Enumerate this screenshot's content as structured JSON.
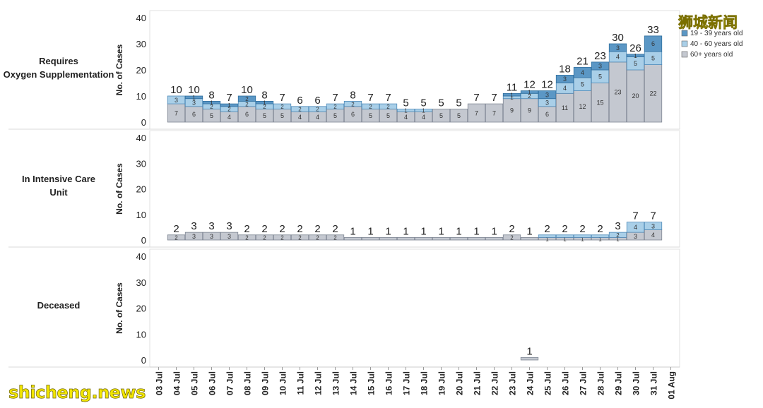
{
  "watermarks": {
    "top": "狮城新闻",
    "bottom": "shicheng.news"
  },
  "legend": {
    "items": [
      {
        "label": "19 - 39 years old",
        "color": "#5b97c5"
      },
      {
        "label": "40 - 60 years old",
        "color": "#a9cfe8"
      },
      {
        "label": "60+ years old",
        "color": "#c4c8d0"
      }
    ]
  },
  "chart_data": {
    "type": "bar",
    "stacked": true,
    "categories": [
      "03 Jul",
      "04 Jul",
      "05 Jul",
      "06 Jul",
      "07 Jul",
      "08 Jul",
      "09 Jul",
      "10 Jul",
      "11 Jul",
      "12 Jul",
      "13 Jul",
      "14 Jul",
      "15 Jul",
      "16 Jul",
      "17 Jul",
      "18 Jul",
      "19 Jul",
      "20 Jul",
      "21 Jul",
      "22 Jul",
      "23 Jul",
      "24 Jul",
      "25 Jul",
      "26 Jul",
      "27 Jul",
      "28 Jul",
      "29 Jul",
      "30 Jul",
      "31 Jul",
      "01 Aug"
    ],
    "ylabel": "No. of Cases",
    "yticks": [
      0,
      10,
      20,
      30,
      40
    ],
    "ylim": [
      0,
      40
    ],
    "panels": [
      {
        "name": "Requires Oxygen Supplementation",
        "series": [
          {
            "name": "60+ years old",
            "values": [
              null,
              7,
              6,
              5,
              4,
              6,
              5,
              5,
              4,
              4,
              5,
              6,
              5,
              5,
              4,
              4,
              5,
              5,
              7,
              7,
              9,
              9,
              6,
              11,
              12,
              15,
              23,
              20,
              22,
              null
            ]
          },
          {
            "name": "40 - 60 years old",
            "values": [
              null,
              3,
              3,
              2,
              2,
              2,
              2,
              2,
              2,
              2,
              2,
              2,
              2,
              2,
              1,
              1,
              0,
              0,
              0,
              0,
              1,
              2,
              3,
              4,
              5,
              5,
              4,
              5,
              5,
              null
            ]
          },
          {
            "name": "19 - 39 years old",
            "values": [
              null,
              0,
              1,
              1,
              1,
              2,
              1,
              0,
              0,
              0,
              0,
              0,
              0,
              0,
              0,
              0,
              0,
              0,
              0,
              0,
              1,
              1,
              3,
              3,
              4,
              3,
              3,
              1,
              6,
              null
            ]
          }
        ],
        "totals": [
          null,
          10,
          10,
          8,
          7,
          10,
          8,
          7,
          6,
          6,
          7,
          8,
          7,
          7,
          5,
          5,
          5,
          5,
          7,
          7,
          11,
          12,
          12,
          18,
          21,
          23,
          30,
          26,
          33,
          null
        ],
        "segment_labels": [
          [
            null,
            "7",
            "6",
            "5",
            "4",
            "6",
            "5",
            "5",
            "4",
            "4",
            "5",
            "6",
            "5",
            "5",
            "4",
            "4",
            "5",
            "5",
            "7",
            "7",
            "9",
            "9",
            "6",
            "11",
            "12",
            "15",
            "23",
            "20",
            "22",
            null
          ],
          [
            null,
            "3",
            "3",
            "2",
            "2",
            "2",
            "2",
            "2",
            "2",
            "2",
            "2",
            "2",
            "2",
            "2",
            "1",
            "1",
            null,
            null,
            null,
            null,
            "1",
            "2",
            "3",
            "4",
            "5",
            "5",
            "4",
            "5",
            "5",
            null
          ],
          [
            null,
            null,
            "1",
            "1",
            "1",
            "2",
            "1",
            null,
            null,
            null,
            null,
            null,
            null,
            null,
            null,
            null,
            null,
            null,
            null,
            null,
            "1",
            "1",
            "3",
            "3",
            "4",
            "3",
            "3",
            "1",
            "6",
            null
          ]
        ]
      },
      {
        "name": "In Intensive Care Unit",
        "series": [
          {
            "name": "60+ years old",
            "values": [
              null,
              2,
              3,
              3,
              3,
              2,
              2,
              2,
              2,
              2,
              2,
              1,
              1,
              1,
              1,
              1,
              1,
              1,
              1,
              1,
              2,
              1,
              1,
              1,
              1,
              1,
              1,
              3,
              4,
              null
            ]
          },
          {
            "name": "40 - 60 years old",
            "values": [
              null,
              0,
              0,
              0,
              0,
              0,
              0,
              0,
              0,
              0,
              0,
              0,
              0,
              0,
              0,
              0,
              0,
              0,
              0,
              0,
              0,
              0,
              1,
              1,
              1,
              1,
              2,
              4,
              3,
              null
            ]
          },
          {
            "name": "19 - 39 years old",
            "values": [
              null,
              0,
              0,
              0,
              0,
              0,
              0,
              0,
              0,
              0,
              0,
              0,
              0,
              0,
              0,
              0,
              0,
              0,
              0,
              0,
              0,
              0,
              0,
              0,
              0,
              0,
              0,
              0,
              0,
              null
            ]
          }
        ],
        "totals": [
          null,
          2,
          3,
          3,
          3,
          2,
          2,
          2,
          2,
          2,
          2,
          1,
          1,
          1,
          1,
          1,
          1,
          1,
          1,
          1,
          2,
          1,
          2,
          2,
          2,
          2,
          3,
          7,
          7,
          null
        ],
        "segment_labels": [
          [
            null,
            "2",
            "3",
            "3",
            "3",
            "2",
            "2",
            "2",
            "2",
            "2",
            "2",
            null,
            null,
            null,
            null,
            null,
            null,
            null,
            null,
            null,
            "2",
            null,
            "1",
            "1",
            "1",
            "1",
            "1",
            "3",
            "4",
            null
          ],
          [
            null,
            null,
            null,
            null,
            null,
            null,
            null,
            null,
            null,
            null,
            null,
            null,
            null,
            null,
            null,
            null,
            null,
            null,
            null,
            null,
            null,
            null,
            null,
            null,
            null,
            null,
            "2",
            "4",
            "3",
            null
          ],
          [
            null,
            null,
            null,
            null,
            null,
            null,
            null,
            null,
            null,
            null,
            null,
            null,
            null,
            null,
            null,
            null,
            null,
            null,
            null,
            null,
            null,
            null,
            null,
            null,
            null,
            null,
            null,
            null,
            null,
            null
          ]
        ]
      },
      {
        "name": "Deceased",
        "series": [
          {
            "name": "60+ years old",
            "values": [
              null,
              0,
              0,
              0,
              0,
              0,
              0,
              0,
              0,
              0,
              0,
              0,
              0,
              0,
              0,
              0,
              0,
              0,
              0,
              0,
              0,
              1,
              0,
              0,
              0,
              0,
              0,
              0,
              0,
              null
            ]
          },
          {
            "name": "40 - 60 years old",
            "values": [
              null,
              0,
              0,
              0,
              0,
              0,
              0,
              0,
              0,
              0,
              0,
              0,
              0,
              0,
              0,
              0,
              0,
              0,
              0,
              0,
              0,
              0,
              0,
              0,
              0,
              0,
              0,
              0,
              0,
              null
            ]
          },
          {
            "name": "19 - 39 years old",
            "values": [
              null,
              0,
              0,
              0,
              0,
              0,
              0,
              0,
              0,
              0,
              0,
              0,
              0,
              0,
              0,
              0,
              0,
              0,
              0,
              0,
              0,
              0,
              0,
              0,
              0,
              0,
              0,
              0,
              0,
              null
            ]
          }
        ],
        "totals": [
          null,
          null,
          null,
          null,
          null,
          null,
          null,
          null,
          null,
          null,
          null,
          null,
          null,
          null,
          null,
          null,
          null,
          null,
          null,
          null,
          null,
          1,
          null,
          null,
          null,
          null,
          null,
          null,
          null,
          null
        ],
        "segment_labels": [
          [
            null,
            null,
            null,
            null,
            null,
            null,
            null,
            null,
            null,
            null,
            null,
            null,
            null,
            null,
            null,
            null,
            null,
            null,
            null,
            null,
            null,
            null,
            null,
            null,
            null,
            null,
            null,
            null,
            null,
            null
          ],
          [
            null,
            null,
            null,
            null,
            null,
            null,
            null,
            null,
            null,
            null,
            null,
            null,
            null,
            null,
            null,
            null,
            null,
            null,
            null,
            null,
            null,
            null,
            null,
            null,
            null,
            null,
            null,
            null,
            null,
            null
          ],
          [
            null,
            null,
            null,
            null,
            null,
            null,
            null,
            null,
            null,
            null,
            null,
            null,
            null,
            null,
            null,
            null,
            null,
            null,
            null,
            null,
            null,
            null,
            null,
            null,
            null,
            null,
            null,
            null,
            null,
            null
          ]
        ]
      }
    ],
    "legend_position": "top-right",
    "grid": false
  }
}
